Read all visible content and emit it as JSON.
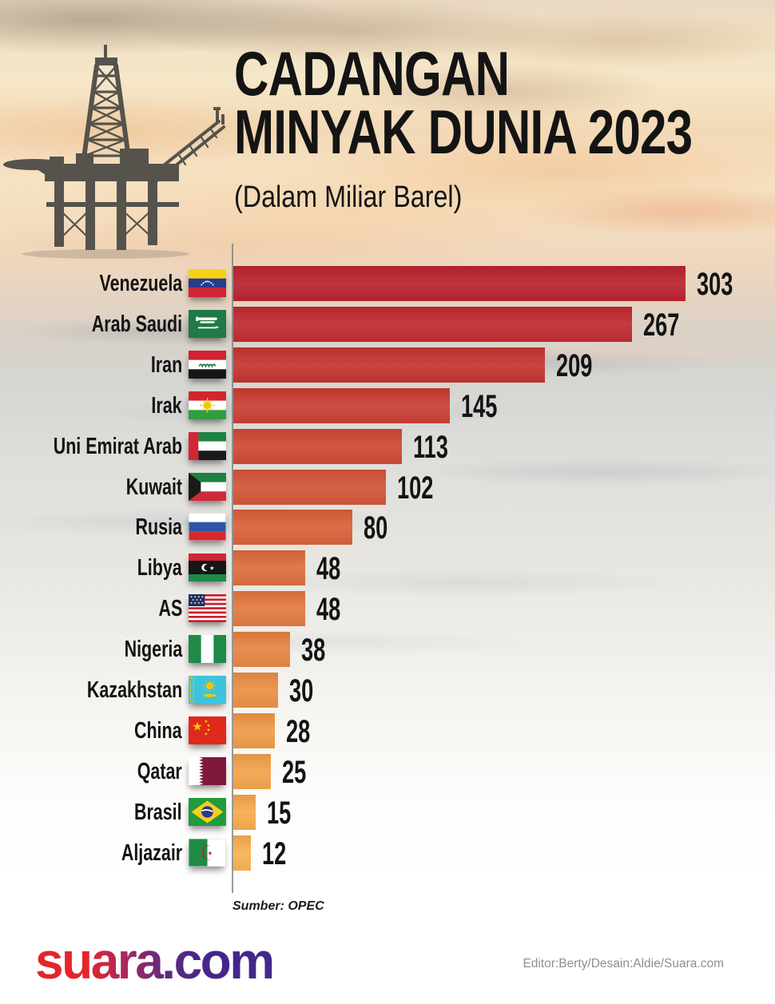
{
  "title": {
    "line1": "CADANGAN",
    "line2": "MINYAK DUNIA 2023",
    "subtitle": "(Dalam Miliar Barel)"
  },
  "source": "Sumber: OPEC",
  "footer": {
    "logo": "suara.com",
    "credits": "Editor:Berty/Desain:Aldie/Suara.com"
  },
  "colors": {
    "bar_max": "#b9242f",
    "bar_min": "#f7b252",
    "axis_line": "#787878",
    "title_text": "#141414",
    "credits_text": "#8f8f8f",
    "logo_gradient": [
      "#e6242c",
      "#45258b"
    ]
  },
  "chart_data": {
    "type": "bar",
    "orientation": "horizontal",
    "title": "CADANGAN MINYAK DUNIA 2023",
    "subtitle": "(Dalam Miliar Barel)",
    "unit": "miliar barel",
    "source": "OPEC",
    "xlim": [
      0,
      310
    ],
    "grid": false,
    "legend": false,
    "categories": [
      "Venezuela",
      "Arab Saudi",
      "Iran",
      "Irak",
      "Uni Emirat Arab",
      "Kuwait",
      "Rusia",
      "Libya",
      "AS",
      "Nigeria",
      "Kazakhstan",
      "China",
      "Qatar",
      "Brasil",
      "Aljazair"
    ],
    "values": [
      303,
      267,
      209,
      145,
      113,
      102,
      80,
      48,
      48,
      38,
      30,
      28,
      25,
      15,
      12
    ],
    "bar_colors": [
      "#b9242f",
      "#bf2c31",
      "#c43531",
      "#c93f34",
      "#ce4a36",
      "#d35638",
      "#d8623b",
      "#dd6e3e",
      "#e17a40",
      "#e68643",
      "#ea9146",
      "#ee9b49",
      "#f2a44c",
      "#f5ac4f",
      "#f7b252"
    ],
    "flags": [
      "venezuela",
      "arab-saudi",
      "iran",
      "irak",
      "uni-emirat-arab",
      "kuwait",
      "rusia",
      "libya",
      "as",
      "nigeria",
      "kazakhstan",
      "china",
      "qatar",
      "brasil",
      "aljazair"
    ]
  }
}
